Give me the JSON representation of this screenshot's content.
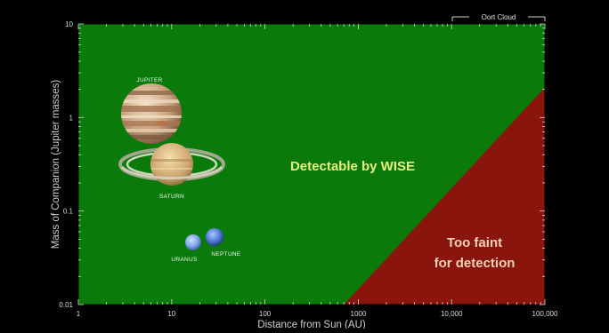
{
  "chart_data": {
    "type": "area",
    "x_scale": "log",
    "y_scale": "log",
    "xlim": [
      1,
      100000
    ],
    "ylim": [
      0.01,
      10
    ],
    "xlabel": "Distance from Sun (AU)",
    "ylabel": "Mass of Companion (Jupiter masses)",
    "x_ticks": [
      "1",
      "10",
      "100",
      "1000",
      "10,000",
      "100,000"
    ],
    "x_tick_values": [
      1,
      10,
      100,
      1000,
      10000,
      100000
    ],
    "y_ticks": [
      "0.01",
      "0.1",
      "1",
      "10"
    ],
    "y_tick_values": [
      0.01,
      0.1,
      1,
      10
    ],
    "regions": [
      {
        "label": "Detectable by WISE",
        "color": "#0a7a0a"
      },
      {
        "label_lines": [
          "Too faint",
          "for detection"
        ],
        "color": "#8a150d",
        "boundary": [
          [
            700,
            0.01
          ],
          [
            100000,
            2.1
          ]
        ]
      }
    ],
    "planets": [
      {
        "name": "JUPITER",
        "x": 5.2,
        "y": 1.0
      },
      {
        "name": "SATURN",
        "x": 9.5,
        "y": 0.3
      },
      {
        "name": "URANUS",
        "x": 19.2,
        "y": 0.046
      },
      {
        "name": "NEPTUNE",
        "x": 30.1,
        "y": 0.054
      }
    ],
    "annotation": {
      "label": "Oort Cloud",
      "x_range": [
        2000,
        100000
      ]
    },
    "grid": false
  },
  "colors": {
    "background": "#000000",
    "detectable": "#0a7a0a",
    "too_faint": "#8a150d"
  }
}
